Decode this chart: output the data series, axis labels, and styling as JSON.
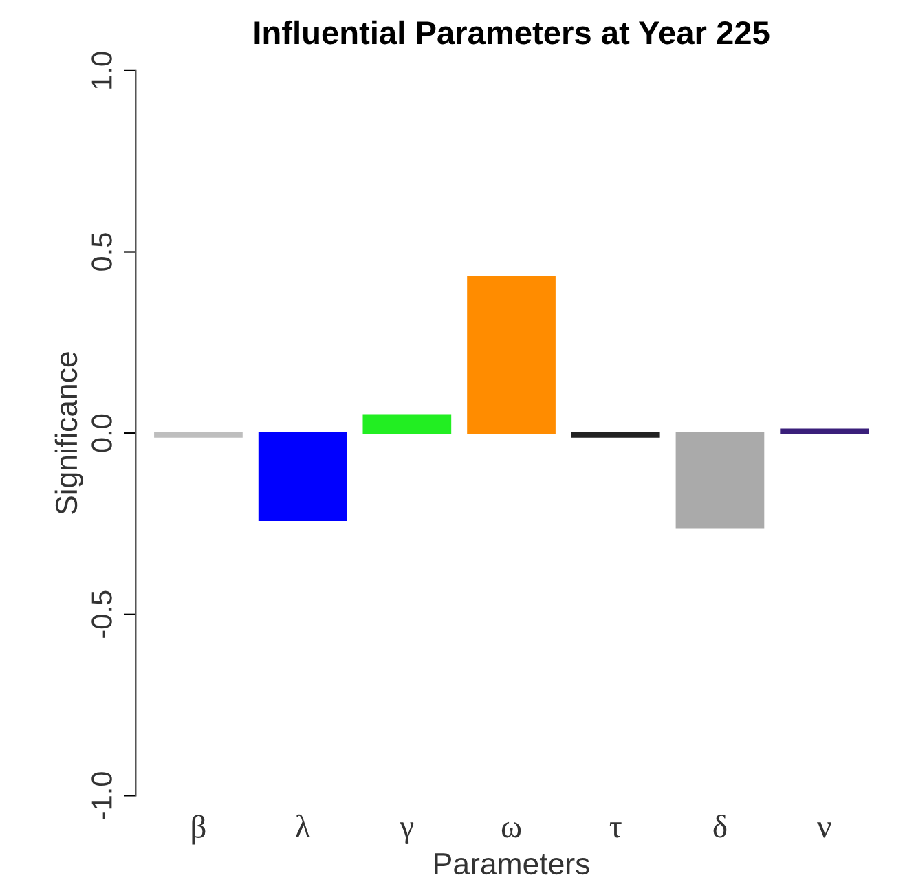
{
  "chart_data": {
    "type": "bar",
    "title": "Influential Parameters at Year 225",
    "xlabel": "Parameters",
    "ylabel": "Significance",
    "categories": [
      "β",
      "λ",
      "γ",
      "ω",
      "τ",
      "δ",
      "ν"
    ],
    "values": [
      -0.01,
      -0.24,
      0.05,
      0.43,
      -0.01,
      -0.26,
      0.01
    ],
    "colors": [
      "#bebebe",
      "#0000ff",
      "#22ee22",
      "#ff8c00",
      "#222222",
      "#aaaaaa",
      "#3a1f7a"
    ],
    "ylim": [
      -1.0,
      1.0
    ],
    "yticks": [
      {
        "value": -1.0,
        "label": "-1.0"
      },
      {
        "value": -0.5,
        "label": "-0.5"
      },
      {
        "value": 0.0,
        "label": "0.0"
      },
      {
        "value": 0.5,
        "label": "0.5"
      },
      {
        "value": 1.0,
        "label": "1.0"
      }
    ],
    "grid": false
  }
}
